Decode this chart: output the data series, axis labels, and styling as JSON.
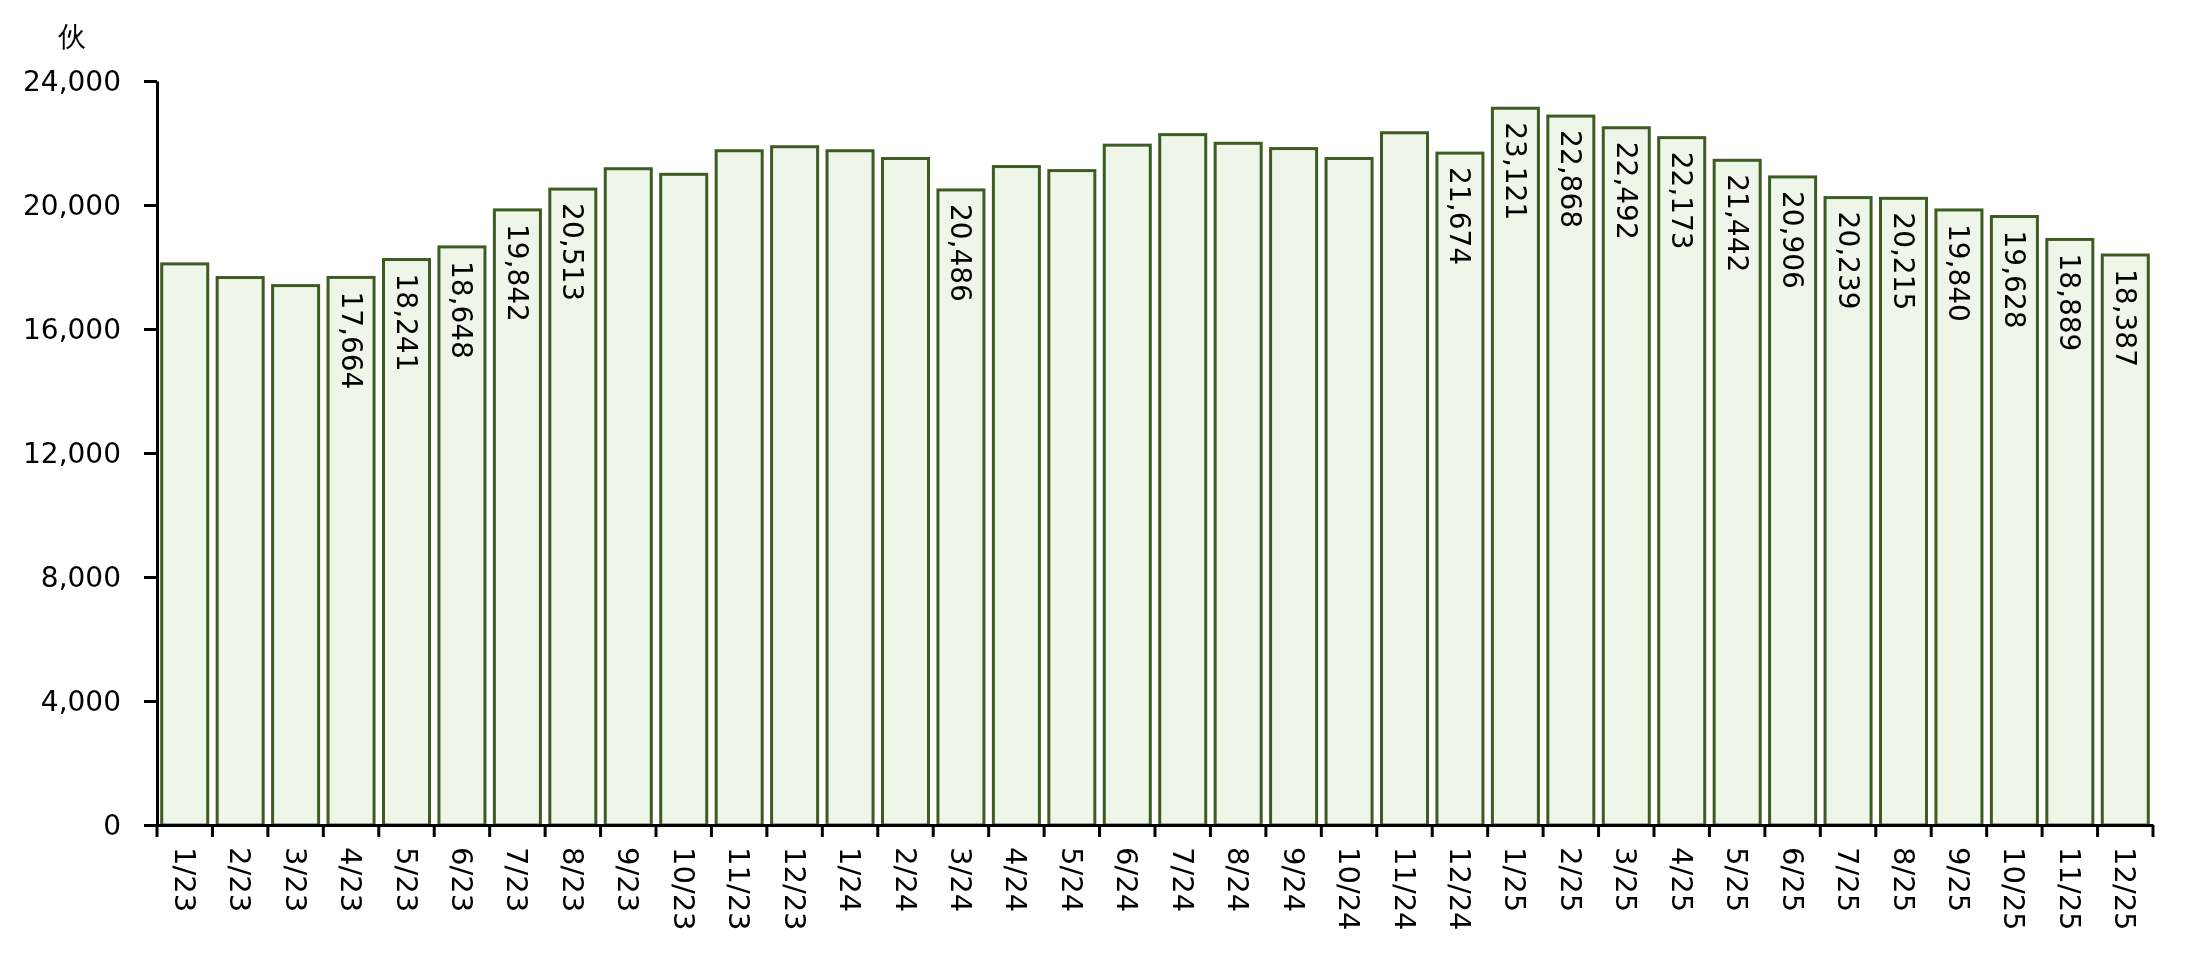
{
  "chart_data": {
    "type": "bar",
    "ylabel": "伙",
    "categories": [
      "1/23",
      "2/23",
      "3/23",
      "4/23",
      "5/23",
      "6/23",
      "7/23",
      "8/23",
      "9/23",
      "10/23",
      "11/23",
      "12/23",
      "1/24",
      "2/24",
      "3/24",
      "4/24",
      "5/24",
      "6/24",
      "7/24",
      "8/24",
      "9/24",
      "10/24",
      "11/24",
      "12/24",
      "1/25",
      "2/25",
      "3/25",
      "4/25",
      "5/25",
      "6/25",
      "7/25",
      "8/25",
      "9/25",
      "10/25",
      "11/25",
      "12/25"
    ],
    "values": [
      18100,
      17660,
      17400,
      17664,
      18241,
      18648,
      19842,
      20513,
      21170,
      20990,
      21750,
      21880,
      21750,
      21500,
      20486,
      21240,
      21110,
      21930,
      22270,
      21990,
      21820,
      21500,
      22330,
      21674,
      23121,
      22868,
      22492,
      22173,
      21442,
      20906,
      20239,
      20215,
      19840,
      19628,
      18889,
      18387
    ],
    "value_labels": [
      null,
      null,
      null,
      "17,664",
      "18,241",
      "18,648",
      "19,842",
      "20,513",
      null,
      null,
      null,
      null,
      null,
      null,
      "20,486",
      null,
      null,
      null,
      null,
      null,
      null,
      null,
      null,
      "21,674",
      "23,121",
      "22,868",
      "22,492",
      "22,173",
      "21,442",
      "20,906",
      "20,239",
      "20,215",
      "19,840",
      "19,628",
      "18,889",
      "18,387"
    ],
    "color": "#eef6e9",
    "ylim": [
      0,
      24000
    ],
    "yticks": [
      {
        "value": 0,
        "label": "0"
      },
      {
        "value": 4000,
        "label": "4,000"
      },
      {
        "value": 8000,
        "label": "8,000"
      },
      {
        "value": 12000,
        "label": "12,000"
      },
      {
        "value": 16000,
        "label": "16,000"
      },
      {
        "value": 20000,
        "label": "20,000"
      },
      {
        "value": 24000,
        "label": "24,000"
      }
    ]
  }
}
